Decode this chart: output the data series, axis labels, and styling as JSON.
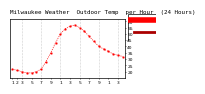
{
  "title": "Milwaukee Weather  Outdoor Temp  per Hour  (24 Hours)",
  "hours": [
    1,
    2,
    3,
    4,
    5,
    6,
    7,
    8,
    9,
    10,
    11,
    12,
    13,
    14,
    15,
    16,
    17,
    18,
    19,
    20,
    21,
    22,
    23,
    24
  ],
  "temps": [
    22,
    21,
    20,
    19,
    19,
    20,
    22,
    28,
    35,
    43,
    50,
    54,
    56,
    57,
    55,
    52,
    48,
    44,
    40,
    38,
    36,
    34,
    33,
    32
  ],
  "ylim": [
    15,
    62
  ],
  "yticks": [
    20,
    25,
    30,
    35,
    40,
    45,
    50,
    55,
    60
  ],
  "line_color": "#ff0000",
  "grid_color": "#999999",
  "bg_color": "#ffffff",
  "border_color": "#000000",
  "legend_max_color": "#ff0000",
  "legend_current_color": "#aa0000",
  "title_fontsize": 4.2,
  "tick_fontsize": 3.2,
  "marker_size": 1.0,
  "line_width": 0.5,
  "grid_positions": [
    3,
    7,
    11,
    15,
    19,
    23
  ],
  "xtick_positions": [
    1,
    2,
    3,
    5,
    7,
    9,
    11,
    13,
    15,
    17,
    19,
    21,
    23
  ],
  "xtick_labels": [
    "1",
    "2",
    "3",
    "5",
    "7",
    "9",
    "1",
    "3",
    "5",
    "7",
    "9",
    "1",
    "3"
  ]
}
